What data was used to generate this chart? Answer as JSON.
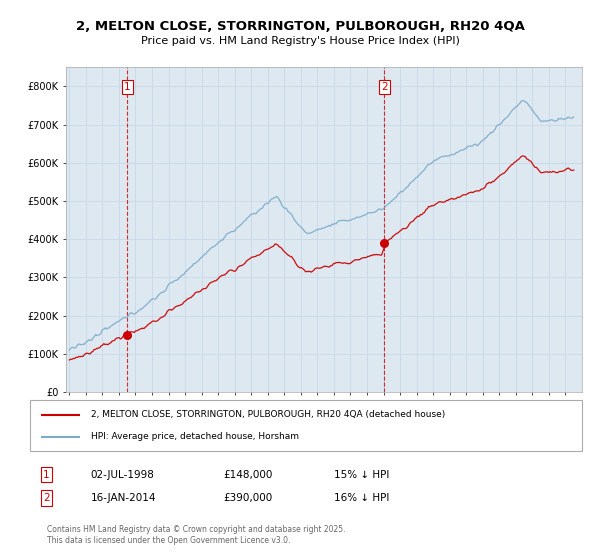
{
  "title_line1": "2, MELTON CLOSE, STORRINGTON, PULBOROUGH, RH20 4QA",
  "title_line2": "Price paid vs. HM Land Registry's House Price Index (HPI)",
  "legend_label1": "2, MELTON CLOSE, STORRINGTON, PULBOROUGH, RH20 4QA (detached house)",
  "legend_label2": "HPI: Average price, detached house, Horsham",
  "sale1_date": "02-JUL-1998",
  "sale1_price": 148000,
  "sale1_note": "15% ↓ HPI",
  "sale2_date": "16-JAN-2014",
  "sale2_price": 390000,
  "sale2_note": "16% ↓ HPI",
  "copyright_text": "Contains HM Land Registry data © Crown copyright and database right 2025.\nThis data is licensed under the Open Government Licence v3.0.",
  "line_color_red": "#cc0000",
  "line_color_blue": "#7aaacc",
  "fill_color_blue": "#dde8f0",
  "background_color": "#ffffff",
  "grid_color": "#c8d8e8",
  "ylim": [
    0,
    850000
  ],
  "yticks": [
    0,
    100000,
    200000,
    300000,
    400000,
    500000,
    600000,
    700000,
    800000
  ],
  "ytick_labels": [
    "£0",
    "£100K",
    "£200K",
    "£300K",
    "£400K",
    "£500K",
    "£600K",
    "£700K",
    "£800K"
  ],
  "xstart_year": 1995,
  "xend_year": 2026,
  "sale1_year": 1998.5,
  "sale2_year": 2014.04
}
